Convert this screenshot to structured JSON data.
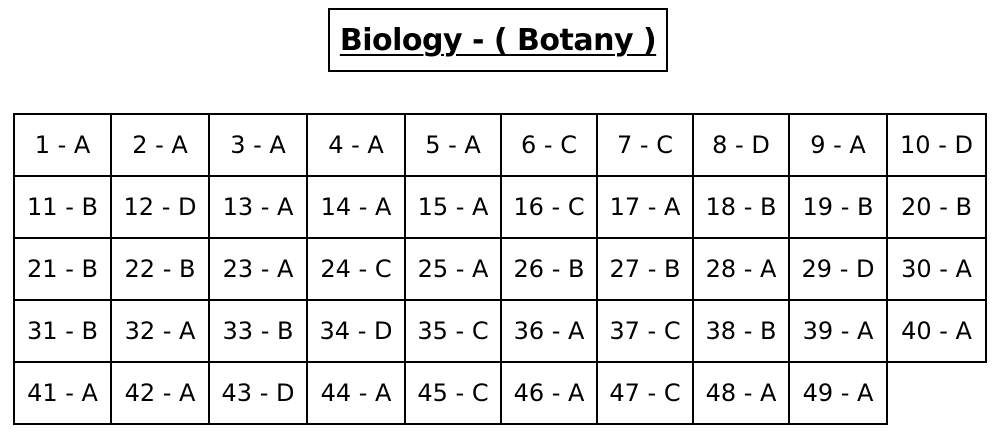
{
  "title": "Biology - ( Botany )",
  "answers": [
    [
      "1 - A",
      "2 - A",
      "3 - A",
      "4 - A",
      "5 - A",
      "6 - C",
      "7 - C",
      "8 - D",
      "9 - A",
      "10 - D"
    ],
    [
      "11 - B",
      "12 - D",
      "13 - A",
      "14 - A",
      "15 - A",
      "16 - C",
      "17 - A",
      "18 - B",
      "19 - B",
      "20 - B"
    ],
    [
      "21 - B",
      "22 - B",
      "23 - A",
      "24 - C",
      "25 - A",
      "26 - B",
      "27 - B",
      "28 - A",
      "29 - D",
      "30 - A"
    ],
    [
      "31 - B",
      "32 - A",
      "33 - B",
      "34 - D",
      "35 - C",
      "36 - A",
      "37 - C",
      "38 - B",
      "39 - A",
      "40 - A"
    ],
    [
      "41 - A",
      "42 - A",
      "43 - D",
      "44 - A",
      "45 - C",
      "46 - A",
      "47 - C",
      "48 - A",
      "49 - A"
    ]
  ]
}
